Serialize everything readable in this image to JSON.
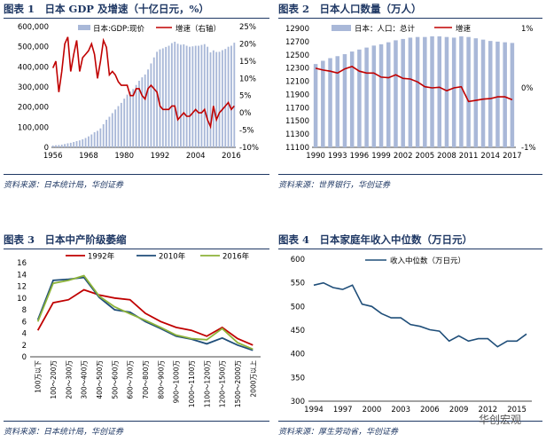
{
  "panels": [
    {
      "title": "图表 1　日本 GDP 及增速（十亿日元，%）",
      "source": "资料来源：日本统计局，华创证券"
    },
    {
      "title": "图表 2　日本人口数量（万人）",
      "source": "资料来源：世界银行，华创证券"
    },
    {
      "title": "图表 3　日本中产阶级萎缩",
      "source": "资料来源：日本统计局，华创证券"
    },
    {
      "title": "图表 4　日本家庭年收入中位数（万日元）",
      "source": "资料来源：厚生劳动省，华创证券"
    }
  ],
  "watermark": "华创宏观",
  "colors": {
    "navy": "#1f3864",
    "bar": "#a9b8d8",
    "red": "#c00000",
    "blue": "#1f4e79",
    "green": "#8db33a"
  },
  "chart_data": [
    {
      "type": "bar+line",
      "title": "日本 GDP 及增速（十亿日元，%）",
      "legend": [
        "日本:GDP:现价",
        "增速（右轴）"
      ],
      "x_ticks": [
        "1956",
        "1968",
        "1980",
        "1992",
        "2004",
        "2016"
      ],
      "y_ticks": [
        "0",
        "100,000",
        "200,000",
        "300,000",
        "400,000",
        "500,000",
        "600,000"
      ],
      "y2_ticks": [
        "-10%",
        "-5%",
        "0%",
        "5%",
        "10%",
        "15%",
        "20%",
        "25%"
      ],
      "ylim": [
        0,
        600000
      ],
      "y2lim": [
        -10,
        25
      ],
      "x": [
        1956,
        1957,
        1958,
        1959,
        1960,
        1961,
        1962,
        1963,
        1964,
        1965,
        1966,
        1967,
        1968,
        1969,
        1970,
        1971,
        1972,
        1973,
        1974,
        1975,
        1976,
        1977,
        1978,
        1979,
        1980,
        1981,
        1982,
        1983,
        1984,
        1985,
        1986,
        1987,
        1988,
        1989,
        1990,
        1991,
        1992,
        1993,
        1994,
        1995,
        1996,
        1997,
        1998,
        1999,
        2000,
        2001,
        2002,
        2003,
        2004,
        2005,
        2006,
        2007,
        2008,
        2009,
        2010,
        2011,
        2012,
        2013,
        2014,
        2015,
        2016,
        2017
      ],
      "series": [
        {
          "name": "日本:GDP:现价",
          "type": "bar",
          "values": [
            9000,
            10500,
            11500,
            13500,
            16500,
            20000,
            22500,
            26500,
            31000,
            34500,
            40000,
            46500,
            54500,
            64000,
            75000,
            82000,
            94000,
            115000,
            137000,
            152000,
            170000,
            188000,
            205000,
            221000,
            242000,
            262000,
            277000,
            290000,
            310000,
            331000,
            348000,
            362000,
            387000,
            417000,
            447000,
            475000,
            487000,
            492000,
            499000,
            505000,
            518000,
            525000,
            515000,
            510000,
            512000,
            505000,
            500000,
            502000,
            505000,
            505000,
            509000,
            513000,
            500000,
            472000,
            482000,
            474000,
            475000,
            483000,
            489000,
            500000,
            505000,
            520000
          ]
        },
        {
          "name": "增速（右轴）",
          "type": "line",
          "axis": "right",
          "values": [
            13,
            15,
            6,
            12,
            20,
            22,
            12,
            17,
            21,
            12,
            16,
            17,
            18,
            20,
            17,
            10,
            15,
            21,
            19,
            11,
            12,
            11,
            9,
            8,
            8,
            8,
            5,
            5,
            7,
            7,
            5,
            4,
            7,
            8,
            7,
            6,
            2,
            1,
            1,
            1,
            2,
            2,
            -2,
            -1,
            0,
            -1,
            -1,
            0,
            1,
            0,
            0,
            1,
            -2,
            -4,
            2,
            -2,
            0,
            1,
            2,
            3,
            1,
            2
          ]
        }
      ]
    },
    {
      "type": "bar+line",
      "title": "日本人口数量（万人）",
      "legend": [
        "日本：人口：总计",
        "增速"
      ],
      "x_ticks": [
        "1990",
        "1993",
        "1996",
        "1999",
        "2002",
        "2005",
        "2008",
        "2011",
        "2014",
        "2017"
      ],
      "y_ticks": [
        "11100",
        "11300",
        "11500",
        "11700",
        "11900",
        "12100",
        "12300",
        "12500",
        "12700",
        "12900"
      ],
      "y2_ticks": [
        "-1%",
        "0%",
        "1%"
      ],
      "ylim": [
        11100,
        12900
      ],
      "y2lim": [
        -1,
        1
      ],
      "x": [
        1990,
        1991,
        1992,
        1993,
        1994,
        1995,
        1996,
        1997,
        1998,
        1999,
        2000,
        2001,
        2002,
        2003,
        2004,
        2005,
        2006,
        2007,
        2008,
        2009,
        2010,
        2011,
        2012,
        2013,
        2014,
        2015,
        2016,
        2017
      ],
      "series": [
        {
          "name": "日本：人口：总计",
          "type": "bar",
          "values": [
            12361,
            12410,
            12450,
            12480,
            12510,
            12550,
            12580,
            12610,
            12640,
            12660,
            12690,
            12720,
            12740,
            12760,
            12770,
            12770,
            12780,
            12780,
            12770,
            12760,
            12780,
            12770,
            12750,
            12730,
            12710,
            12700,
            12690,
            12680
          ]
        },
        {
          "name": "增速",
          "type": "line",
          "axis": "right",
          "values": [
            0.33,
            0.3,
            0.28,
            0.25,
            0.32,
            0.36,
            0.28,
            0.25,
            0.25,
            0.18,
            0.17,
            0.22,
            0.16,
            0.15,
            0.1,
            0.02,
            0.0,
            0.01,
            -0.05,
            0.0,
            0.02,
            -0.23,
            -0.21,
            -0.19,
            -0.18,
            -0.15,
            -0.15,
            -0.2
          ]
        }
      ]
    },
    {
      "type": "line",
      "title": "日本中产阶级萎缩",
      "categories": [
        "100万以下",
        "100～200万",
        "200～300万",
        "300～400万",
        "400～500万",
        "500～600万",
        "600～700万",
        "700～800万",
        "800～900万",
        "900～1000万",
        "1000～1100万",
        "1100～1200万",
        "1200～1500万",
        "1500～2000万",
        "2000万以上"
      ],
      "y_ticks": [
        "0",
        "2",
        "4",
        "6",
        "8",
        "10",
        "12",
        "14",
        "16"
      ],
      "ylim": [
        0,
        16
      ],
      "series": [
        {
          "name": "1992年",
          "values": [
            4.5,
            9.2,
            9.7,
            11.4,
            10.5,
            10.0,
            9.7,
            7.4,
            6.0,
            5.0,
            4.5,
            3.5,
            5.0,
            3.1,
            2.0
          ]
        },
        {
          "name": "2010年",
          "values": [
            6.3,
            13.0,
            13.2,
            13.5,
            10.1,
            8.0,
            7.6,
            6.0,
            4.8,
            3.5,
            3.0,
            2.2,
            3.2,
            2.0,
            1.1
          ]
        },
        {
          "name": "2016年",
          "values": [
            6.0,
            12.5,
            13.0,
            13.8,
            10.3,
            8.5,
            7.3,
            6.2,
            5.0,
            3.7,
            3.1,
            2.9,
            4.8,
            2.4,
            1.3
          ]
        }
      ]
    },
    {
      "type": "line",
      "title": "日本家庭年收入中位数（万日元）",
      "legend": [
        "收入中位数（万日元）"
      ],
      "x": [
        1994,
        1995,
        1996,
        1997,
        1998,
        1999,
        2000,
        2001,
        2002,
        2003,
        2004,
        2005,
        2006,
        2007,
        2008,
        2009,
        2010,
        2011,
        2012,
        2013,
        2014,
        2015,
        2016
      ],
      "x_ticks": [
        "1994",
        "1997",
        "2000",
        "2003",
        "2006",
        "2009",
        "2012",
        "2015"
      ],
      "y_ticks": [
        "300",
        "350",
        "400",
        "450",
        "500",
        "550",
        "600"
      ],
      "ylim": [
        300,
        600
      ],
      "series": [
        {
          "name": "收入中位数（万日元）",
          "values": [
            545,
            550,
            540,
            536,
            545,
            505,
            500,
            485,
            476,
            476,
            462,
            458,
            451,
            448,
            427,
            438,
            427,
            432,
            432,
            415,
            427,
            427,
            442
          ]
        }
      ]
    }
  ]
}
